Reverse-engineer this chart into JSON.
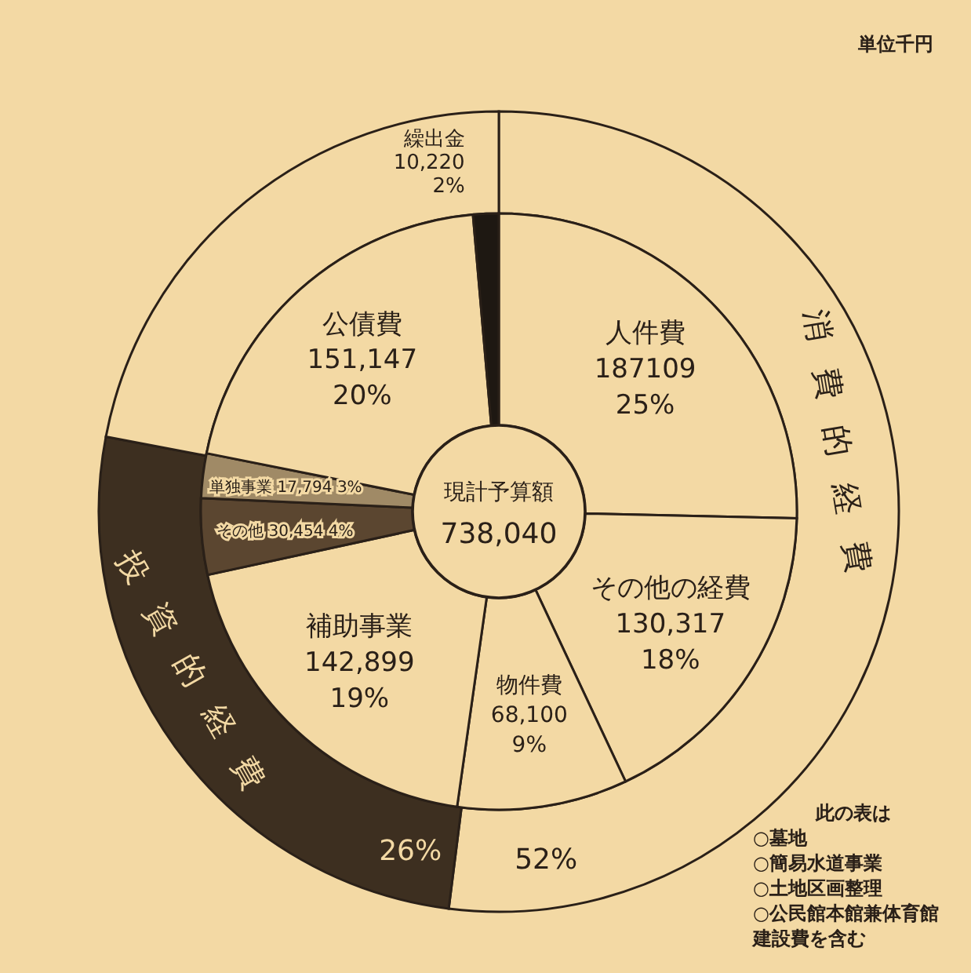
{
  "chart_data": [
    {
      "type": "donut",
      "title": "現計予算額",
      "categories": [
        "人件費",
        "その他の経費",
        "物件費",
        "補助事業",
        "その他",
        "単独事業",
        "公債費",
        "繰出金"
      ],
      "values": [
        187109,
        130317,
        68100,
        142899,
        30454,
        17794,
        151147,
        10220
      ],
      "colors": [
        "#f3d9a4",
        "#f3d9a4",
        "#f3d9a4",
        "#f3d9a4",
        "#5b4630",
        "#a08a66",
        "#f3d9a4",
        "#1e1812"
      ],
      "value_labels": [
        "187109\n25%",
        "130,317\n18%",
        "68,100\n9%",
        "142,899\n19%",
        "30,454\n4%",
        "17,794\n3%",
        "151,147\n20%",
        "10,220\n2%"
      ],
      "annotations": [
        "738,040",
        "単位千円",
        "此の表は\n○墓地\n○簡易水道事業\n○土地区画整理\n○公民館本館兼体育館建設費を含む"
      ]
    },
    {
      "type": "donut",
      "categories": [
        "消費的経費",
        "投資的経費",
        null
      ],
      "values": [
        52,
        26,
        22
      ],
      "colors": [
        "#f3d9a4",
        "#3d2f20",
        "#f3d9a4"
      ],
      "value_labels": [
        "52%",
        "26%",
        null
      ]
    }
  ]
}
